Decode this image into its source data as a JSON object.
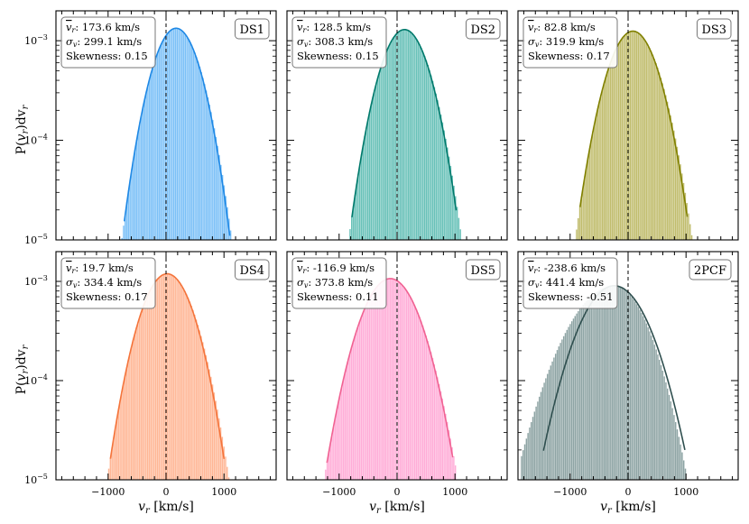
{
  "chart_data": [
    {
      "type": "histogram",
      "name": "DS1",
      "color": "#1e88e5",
      "fill_color": "#64b5f6",
      "mean": 173.6,
      "sigma": 299.1,
      "labels": {
        "mean": ": 173.6 km/s",
        "sigma": ": 299.1 km/s",
        "skew": "Skewness: 0.15"
      },
      "skewness": 0.15,
      "hist_range": [
        -800,
        1150
      ],
      "fit_range": [
        -720,
        1100
      ]
    },
    {
      "type": "histogram",
      "name": "DS2",
      "color": "#00796b",
      "fill_color": "#4db6ac",
      "mean": 128.5,
      "sigma": 308.3,
      "labels": {
        "mean": ": 128.5 km/s",
        "sigma": ": 308.3 km/s",
        "skew": "Skewness: 0.15"
      },
      "skewness": 0.15,
      "hist_range": [
        -850,
        1100
      ],
      "fit_range": [
        -780,
        1020
      ]
    },
    {
      "type": "histogram",
      "name": "DS3",
      "color": "#808000",
      "fill_color": "#b5b052",
      "mean": 82.8,
      "sigma": 319.9,
      "labels": {
        "mean": ": 82.8 km/s",
        "sigma": ": 319.9 km/s",
        "skew": "Skewness: 0.17"
      },
      "skewness": 0.17,
      "hist_range": [
        -900,
        1150
      ],
      "fit_range": [
        -830,
        1020
      ]
    },
    {
      "type": "histogram",
      "name": "DS4",
      "color": "#f4743b",
      "fill_color": "#ffa982",
      "mean": 19.7,
      "sigma": 334.4,
      "labels": {
        "mean": ": 19.7 km/s",
        "sigma": ": 334.4 km/s",
        "skew": "Skewness: 0.17"
      },
      "skewness": 0.17,
      "hist_range": [
        -1000,
        1150
      ],
      "fit_range": [
        -960,
        1000
      ]
    },
    {
      "type": "histogram",
      "name": "DS5",
      "color": "#f06292",
      "fill_color": "#ff9dd0",
      "mean": -116.9,
      "sigma": 373.8,
      "labels": {
        "mean": ": -116.9 km/s",
        "sigma": ": 373.8 km/s",
        "skew": "Skewness: 0.11"
      },
      "skewness": 0.11,
      "hist_range": [
        -1300,
        1000
      ],
      "fit_range": [
        -1210,
        960
      ]
    },
    {
      "type": "histogram",
      "name": "2PCF",
      "color": "#2f4f4f",
      "fill_color": "#7a9494",
      "mean": -238.6,
      "sigma": 441.4,
      "labels": {
        "mean": ": -238.6 km/s",
        "sigma": ": 441.4 km/s",
        "skew": "Skewness: -0.51"
      },
      "skewness": -0.51,
      "hist_range": [
        -1850,
        1000
      ],
      "fit_range": [
        -1460,
        980
      ]
    }
  ],
  "axes": {
    "xlabel": "v",
    "xlabel_sub": "r",
    "xlabel_unit": " [km/s]",
    "ylabel_pre": "P(",
    "ylabel_mid": ")dv",
    "ylabel_sub": "r",
    "xlim": [
      -1900,
      1900
    ],
    "ylim_log10": [
      -5,
      -2.7
    ],
    "xticks": [
      "−1000",
      "0",
      "1000"
    ],
    "xtick_values": [
      -1000,
      0,
      1000
    ],
    "yticks": [
      "10",
      "10",
      "10"
    ],
    "ytick_exps": [
      "−5",
      "−4",
      "−3"
    ],
    "ytick_values": [
      -5,
      -4,
      -3
    ],
    "vline_at": 0
  }
}
